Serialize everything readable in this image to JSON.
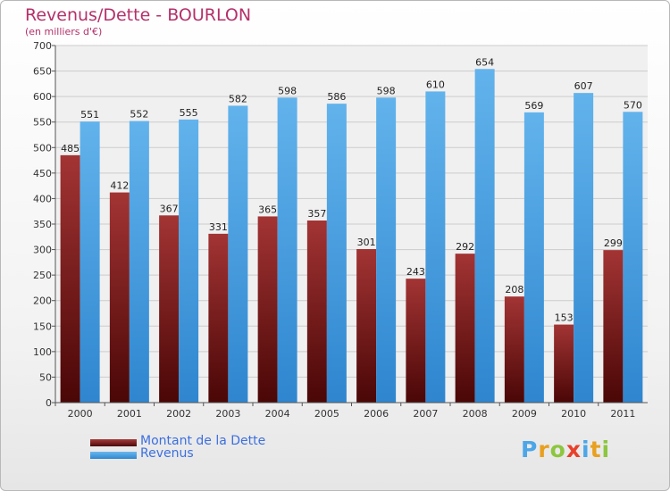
{
  "header": {
    "title": "Revenus/Dette - BOURLON",
    "subtitle": "(en milliers d'€)"
  },
  "logo": {
    "text": "Proxiti",
    "letter_colors": [
      "#4da6e8",
      "#e8a020",
      "#8dc63f",
      "#e8402a",
      "#4da6e8",
      "#e8a020",
      "#8dc63f"
    ]
  },
  "chart_data": {
    "type": "bar",
    "categories": [
      "2000",
      "2001",
      "2002",
      "2003",
      "2004",
      "2005",
      "2006",
      "2007",
      "2008",
      "2009",
      "2010",
      "2011"
    ],
    "series": [
      {
        "name": "Montant de la Dette",
        "values": [
          485,
          412,
          367,
          331,
          365,
          357,
          301,
          243,
          292,
          208,
          153,
          299
        ],
        "color": "#7a1e1e"
      },
      {
        "name": "Revenus",
        "values": [
          551,
          552,
          555,
          582,
          598,
          586,
          598,
          610,
          654,
          569,
          607,
          570
        ],
        "color": "#4fa3e3"
      }
    ],
    "title": "Revenus/Dette - BOURLON",
    "ylabel": "(en milliers d'€)",
    "ylim": [
      0,
      700
    ],
    "yticks": [
      0,
      50,
      100,
      150,
      200,
      250,
      300,
      350,
      400,
      450,
      500,
      550,
      600,
      650,
      700
    ],
    "grid": true,
    "legend": "bottom-left"
  }
}
